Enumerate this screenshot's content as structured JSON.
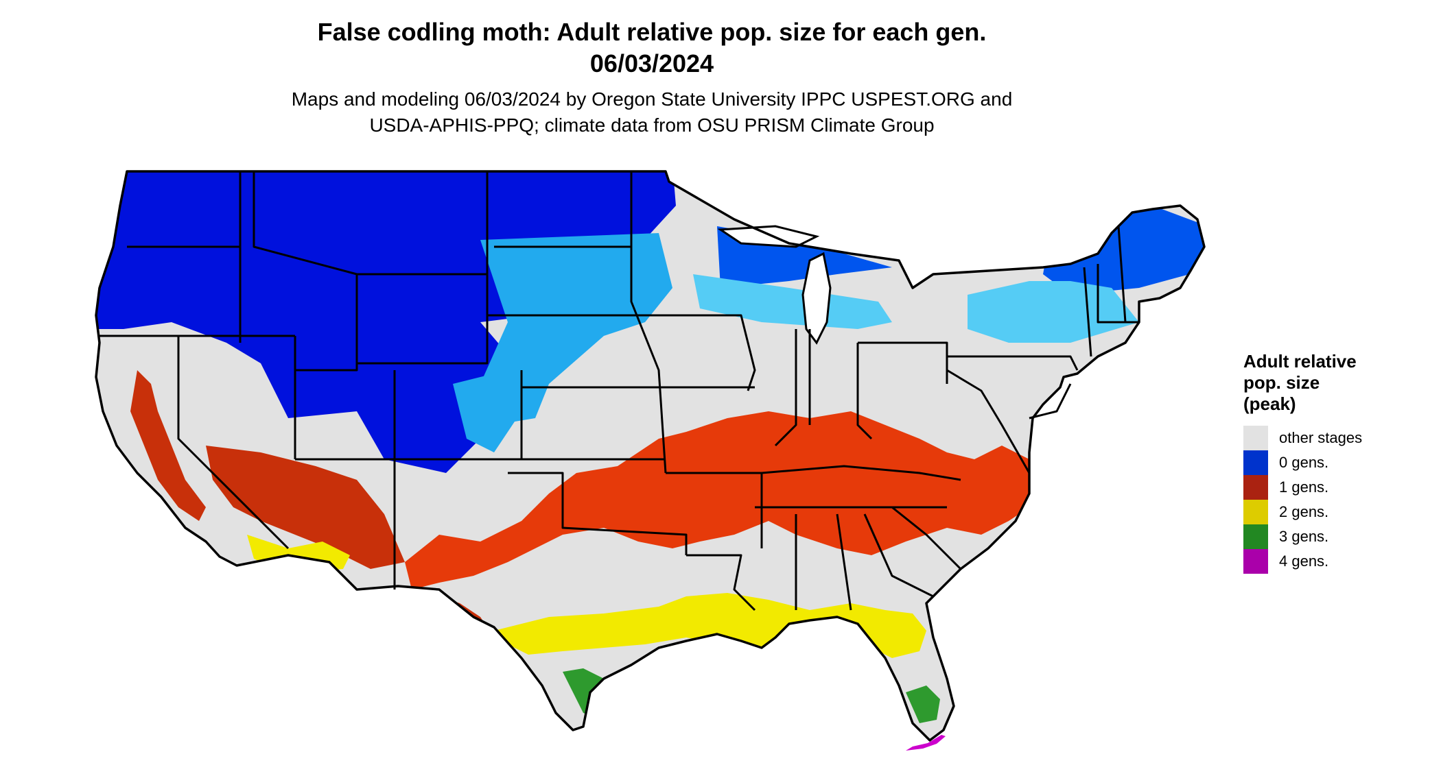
{
  "header": {
    "title_line1": "False codling moth: Adult relative pop. size for each gen.",
    "title_line2": "06/03/2024",
    "subtitle_line1": "Maps and modeling 06/03/2024 by Oregon State University IPPC USPEST.ORG and",
    "subtitle_line2": "USDA-APHIS-PPQ; climate data from OSU PRISM Climate Group"
  },
  "legend": {
    "title_line1": "Adult relative",
    "title_line2": "pop. size",
    "title_line3": "(peak)",
    "items": [
      {
        "label": "other stages",
        "color": "#e2e2e2"
      },
      {
        "label": "0 gens.",
        "color": "#0033cc"
      },
      {
        "label": "1 gens.",
        "color": "#aa2211"
      },
      {
        "label": "2 gens.",
        "color": "#ddcc00"
      },
      {
        "label": "3 gens.",
        "color": "#228822"
      },
      {
        "label": "4 gens.",
        "color": "#aa00aa"
      }
    ]
  },
  "map": {
    "colors": {
      "land": "#e2e2e2",
      "dark_blue": "#0011dd",
      "blue": "#0055ee",
      "light_blue": "#22aaee",
      "pale_blue": "#55ccf5",
      "orange_red": "#e63a0a",
      "red": "#c8300a",
      "yellow": "#f2ea00",
      "green": "#2e9a2e",
      "magenta": "#cc00cc",
      "border": "#000000"
    }
  }
}
